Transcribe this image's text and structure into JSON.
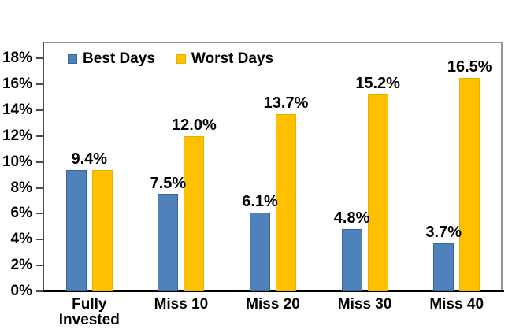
{
  "chart_data": {
    "type": "bar",
    "title": "",
    "xlabel": "",
    "ylabel": "",
    "categories": [
      "Fully Invested",
      "Miss 10",
      "Miss 20",
      "Miss 30",
      "Miss 40"
    ],
    "series": [
      {
        "name": "Best Days",
        "color": "#4F81BD",
        "border_color": "#3A6596",
        "values": [
          9.4,
          7.5,
          6.1,
          4.8,
          3.7
        ],
        "labels": [
          "9.4%",
          "7.5%",
          "6.1%",
          "4.8%",
          "3.7%"
        ]
      },
      {
        "name": "Worst Days",
        "color": "#FFC000",
        "border_color": "#E8AF00",
        "values": [
          9.4,
          12.0,
          13.7,
          15.2,
          16.5
        ],
        "labels": [
          "",
          "12.0%",
          "13.7%",
          "15.2%",
          "16.5%"
        ]
      }
    ],
    "shared_label_groups": [
      0
    ],
    "yticks": [
      0,
      2,
      4,
      6,
      8,
      10,
      12,
      14,
      16,
      18
    ],
    "ytick_labels": [
      "0%",
      "2%",
      "4%",
      "6%",
      "8%",
      "10%",
      "12%",
      "14%",
      "16%",
      "18%"
    ],
    "ylim": [
      0,
      19.3
    ],
    "grid": false,
    "legend_position": "top-left-inside",
    "colors": {
      "plot_border": "#969696",
      "value_axis": "#4D4D4D",
      "category_axis": "#000000",
      "text": "#000000",
      "background": "#FFFFFF"
    }
  }
}
